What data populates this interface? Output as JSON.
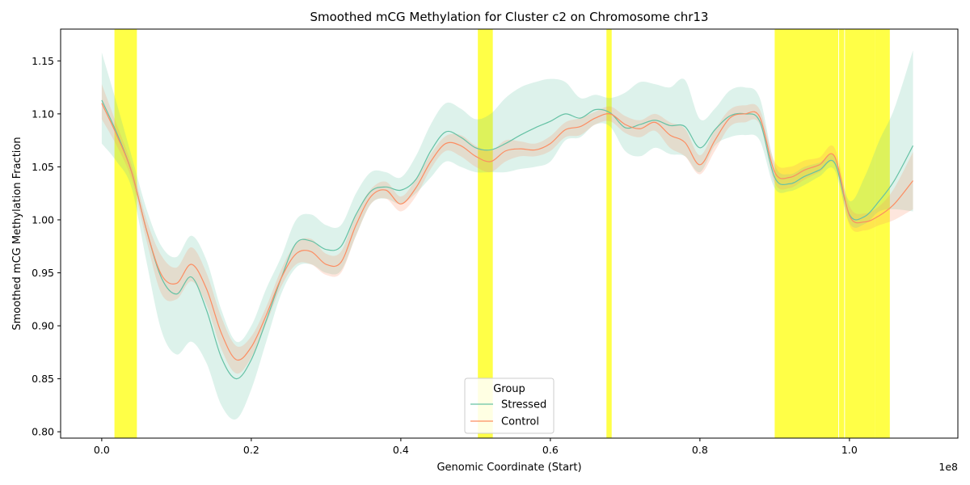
{
  "chart_data": {
    "type": "line",
    "title": "Smoothed mCG Methylation for Cluster c2 on Chromosome chr13",
    "xlabel": "Genomic Coordinate (Start)",
    "ylabel": "Smoothed mCG Methylation Fraction",
    "x_offset_text": "1e8",
    "xlim": [
      -5500000,
      114500000
    ],
    "ylim": [
      0.794,
      1.18
    ],
    "xticks": [
      0,
      20000000,
      40000000,
      60000000,
      80000000,
      100000000
    ],
    "xtick_labels": [
      "0.0",
      "0.2",
      "0.4",
      "0.6",
      "0.8",
      "1.0"
    ],
    "yticks": [
      0.8,
      0.85,
      0.9,
      0.95,
      1.0,
      1.05,
      1.1,
      1.15
    ],
    "ytick_labels": [
      "0.80",
      "0.85",
      "0.90",
      "0.95",
      "1.00",
      "1.05",
      "1.10",
      "1.15"
    ],
    "grid": false,
    "legend": {
      "title": "Group",
      "placement": "lower center"
    },
    "highlight_color": "#ffff00",
    "highlight_regions": [
      [
        1700000,
        4700000
      ],
      [
        50300000,
        52300000
      ],
      [
        67500000,
        68200000
      ],
      [
        90000000,
        98500000
      ],
      [
        98600000,
        99300000
      ],
      [
        99400000,
        102500000
      ],
      [
        102500000,
        103400000
      ],
      [
        103400000,
        105400000
      ]
    ],
    "series": [
      {
        "name": "Stressed",
        "color": "#66c2a5",
        "x": [
          0,
          2000000,
          4000000,
          6000000,
          8000000,
          10000000,
          12000000,
          14000000,
          16000000,
          18000000,
          20000000,
          22000000,
          24000000,
          26000000,
          28000000,
          30000000,
          32000000,
          34000000,
          36000000,
          38000000,
          40000000,
          42000000,
          44000000,
          46000000,
          48000000,
          50000000,
          52000000,
          54000000,
          56000000,
          58000000,
          60000000,
          62000000,
          64000000,
          66000000,
          68000000,
          70000000,
          72000000,
          74000000,
          76000000,
          78000000,
          80000000,
          82000000,
          84000000,
          86000000,
          88000000,
          90000000,
          92000000,
          94000000,
          96000000,
          98000000,
          100000000,
          102000000,
          104000000,
          106000000,
          108500000
        ],
        "y": [
          1.113,
          1.082,
          1.045,
          0.99,
          0.945,
          0.93,
          0.946,
          0.915,
          0.87,
          0.85,
          0.868,
          0.905,
          0.945,
          0.978,
          0.98,
          0.972,
          0.975,
          1.005,
          1.027,
          1.031,
          1.028,
          1.038,
          1.065,
          1.083,
          1.078,
          1.068,
          1.066,
          1.072,
          1.08,
          1.087,
          1.093,
          1.1,
          1.096,
          1.104,
          1.101,
          1.087,
          1.09,
          1.094,
          1.089,
          1.088,
          1.068,
          1.085,
          1.098,
          1.1,
          1.093,
          1.04,
          1.034,
          1.041,
          1.047,
          1.054,
          1.005,
          1.003,
          1.018,
          1.037,
          1.07
        ],
        "lower": [
          1.072,
          1.055,
          1.03,
          0.96,
          0.895,
          0.873,
          0.885,
          0.865,
          0.825,
          0.812,
          0.84,
          0.885,
          0.93,
          0.955,
          0.958,
          0.95,
          0.952,
          0.985,
          1.015,
          1.02,
          1.015,
          1.025,
          1.04,
          1.055,
          1.05,
          1.045,
          1.045,
          1.045,
          1.048,
          1.05,
          1.055,
          1.075,
          1.078,
          1.09,
          1.088,
          1.065,
          1.06,
          1.068,
          1.062,
          1.06,
          1.045,
          1.07,
          1.078,
          1.08,
          1.075,
          1.03,
          1.027,
          1.033,
          1.041,
          1.047,
          0.997,
          0.996,
          1.008,
          1.01,
          1.008
        ],
        "upper": [
          1.158,
          1.11,
          1.06,
          1.01,
          0.975,
          0.965,
          0.985,
          0.962,
          0.915,
          0.885,
          0.9,
          0.935,
          0.965,
          1.0,
          1.005,
          0.995,
          0.995,
          1.025,
          1.045,
          1.045,
          1.04,
          1.06,
          1.09,
          1.11,
          1.105,
          1.095,
          1.1,
          1.115,
          1.125,
          1.13,
          1.133,
          1.13,
          1.115,
          1.118,
          1.115,
          1.12,
          1.13,
          1.128,
          1.125,
          1.132,
          1.095,
          1.105,
          1.122,
          1.125,
          1.115,
          1.052,
          1.043,
          1.05,
          1.054,
          1.06,
          1.018,
          1.04,
          1.075,
          1.105,
          1.16
        ]
      },
      {
        "name": "Control",
        "color": "#fc8d62",
        "x": [
          0,
          2000000,
          4000000,
          6000000,
          8000000,
          10000000,
          12000000,
          14000000,
          16000000,
          18000000,
          20000000,
          22000000,
          24000000,
          26000000,
          28000000,
          30000000,
          32000000,
          34000000,
          36000000,
          38000000,
          40000000,
          42000000,
          44000000,
          46000000,
          48000000,
          50000000,
          52000000,
          54000000,
          56000000,
          58000000,
          60000000,
          62000000,
          64000000,
          66000000,
          68000000,
          70000000,
          72000000,
          74000000,
          76000000,
          78000000,
          80000000,
          82000000,
          84000000,
          86000000,
          88000000,
          90000000,
          92000000,
          94000000,
          96000000,
          98000000,
          100000000,
          102000000,
          104000000,
          106000000,
          108500000
        ],
        "y": [
          1.11,
          1.08,
          1.045,
          0.99,
          0.948,
          0.94,
          0.958,
          0.935,
          0.893,
          0.868,
          0.88,
          0.91,
          0.945,
          0.968,
          0.97,
          0.958,
          0.96,
          0.995,
          1.022,
          1.028,
          1.015,
          1.03,
          1.055,
          1.072,
          1.07,
          1.06,
          1.055,
          1.065,
          1.067,
          1.066,
          1.072,
          1.085,
          1.088,
          1.096,
          1.1,
          1.09,
          1.086,
          1.092,
          1.08,
          1.073,
          1.052,
          1.075,
          1.096,
          1.1,
          1.097,
          1.045,
          1.04,
          1.047,
          1.052,
          1.06,
          1.004,
          0.998,
          1.004,
          1.015,
          1.037
        ],
        "lower": [
          1.095,
          1.07,
          1.038,
          0.98,
          0.93,
          0.925,
          0.942,
          0.92,
          0.878,
          0.855,
          0.87,
          0.902,
          0.937,
          0.958,
          0.958,
          0.948,
          0.95,
          0.985,
          1.015,
          1.02,
          1.008,
          1.022,
          1.048,
          1.065,
          1.06,
          1.05,
          1.045,
          1.055,
          1.06,
          1.06,
          1.065,
          1.078,
          1.08,
          1.09,
          1.093,
          1.082,
          1.078,
          1.084,
          1.068,
          1.06,
          1.043,
          1.065,
          1.088,
          1.092,
          1.09,
          1.035,
          1.03,
          1.038,
          1.045,
          1.052,
          0.995,
          0.99,
          0.995,
          1.0,
          1.01
        ],
        "upper": [
          1.128,
          1.09,
          1.052,
          1.0,
          0.966,
          0.955,
          0.974,
          0.95,
          0.908,
          0.881,
          0.89,
          0.918,
          0.953,
          0.978,
          0.982,
          0.968,
          0.97,
          1.005,
          1.029,
          1.036,
          1.022,
          1.038,
          1.062,
          1.079,
          1.08,
          1.07,
          1.065,
          1.075,
          1.074,
          1.072,
          1.079,
          1.092,
          1.096,
          1.102,
          1.107,
          1.098,
          1.094,
          1.1,
          1.092,
          1.086,
          1.061,
          1.085,
          1.104,
          1.108,
          1.104,
          1.055,
          1.05,
          1.056,
          1.059,
          1.068,
          1.013,
          1.006,
          1.013,
          1.03,
          1.064
        ]
      }
    ]
  }
}
